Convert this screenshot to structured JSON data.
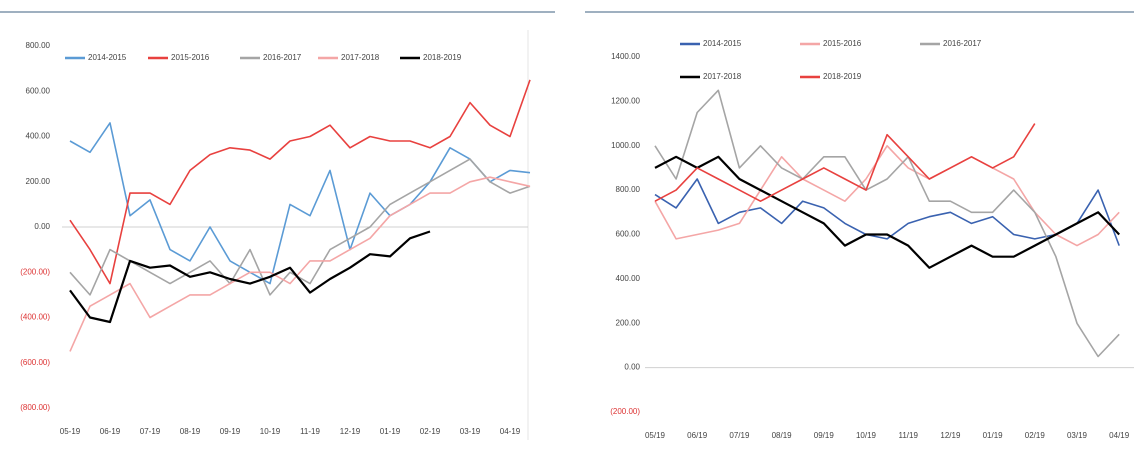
{
  "chart_data": [
    {
      "type": "line",
      "categories": [
        "05-19",
        null,
        "06-19",
        null,
        "07-19",
        null,
        "08-19",
        null,
        "09-19",
        null,
        "10-19",
        null,
        "11-19",
        null,
        "12-19",
        null,
        "01-19",
        null,
        "02-19",
        null,
        "03-19",
        null,
        "04-19",
        null
      ],
      "ylim": [
        -800,
        800
      ],
      "yticks": [
        {
          "value": -800,
          "label": "(800.00)"
        },
        {
          "value": -600,
          "label": "(600.00)"
        },
        {
          "value": -400,
          "label": "(400.00)"
        },
        {
          "value": -200,
          "label": "(200.00)"
        },
        {
          "value": 0,
          "label": "0.00"
        },
        {
          "value": 200,
          "label": "200.00"
        },
        {
          "value": 400,
          "label": "400.00"
        },
        {
          "value": 600,
          "label": "600.00"
        },
        {
          "value": 800,
          "label": "800.00"
        }
      ],
      "series": [
        {
          "name": "2014-2015",
          "color": "#5b9bd5",
          "values": [
            380,
            330,
            460,
            50,
            120,
            -100,
            -150,
            0,
            -150,
            -200,
            -250,
            100,
            50,
            250,
            -100,
            150,
            50,
            100,
            200,
            350,
            300,
            200,
            250,
            240
          ]
        },
        {
          "name": "2015-2016",
          "color": "#e8413f",
          "values": [
            30,
            -100,
            -250,
            150,
            150,
            100,
            250,
            320,
            350,
            340,
            300,
            380,
            400,
            450,
            350,
            400,
            380,
            380,
            350,
            400,
            550,
            450,
            400,
            650
          ]
        },
        {
          "name": "2016-2017",
          "color": "#a5a5a5",
          "values": [
            -200,
            -300,
            -100,
            -150,
            -200,
            -250,
            -200,
            -150,
            -250,
            -100,
            -300,
            -200,
            -250,
            -100,
            -50,
            0,
            100,
            150,
            200,
            250,
            300,
            200,
            150,
            180
          ]
        },
        {
          "name": "2017-2018",
          "color": "#f4a6a6",
          "values": [
            -550,
            -350,
            -300,
            -250,
            -400,
            -350,
            -300,
            -300,
            -250,
            -200,
            -200,
            -250,
            -150,
            -150,
            -100,
            -50,
            50,
            100,
            150,
            150,
            200,
            220,
            200,
            180
          ]
        },
        {
          "name": "2018-2019",
          "color": "#000000",
          "values": [
            -280,
            -400,
            -420,
            -150,
            -180,
            -170,
            -220,
            -200,
            -230,
            -250,
            -220,
            -180,
            -290,
            -230,
            -180,
            -120,
            -130,
            -50,
            -20,
            null,
            null,
            null,
            null,
            null
          ]
        }
      ]
    },
    {
      "type": "line",
      "categories": [
        "05/19",
        null,
        "06/19",
        null,
        "07/19",
        null,
        "08/19",
        null,
        "09/19",
        null,
        "10/19",
        null,
        "11/19",
        null,
        "12/19",
        null,
        "01/19",
        null,
        "02/19",
        null,
        "03/19",
        null,
        "04/19"
      ],
      "ylim": [
        -200,
        1400
      ],
      "yticks": [
        {
          "value": -200,
          "label": "(200.00)"
        },
        {
          "value": 0,
          "label": "0.00"
        },
        {
          "value": 200,
          "label": "200.00"
        },
        {
          "value": 400,
          "label": "400.00"
        },
        {
          "value": 600,
          "label": "600.00"
        },
        {
          "value": 800,
          "label": "800.00"
        },
        {
          "value": 1000,
          "label": "1000.00"
        },
        {
          "value": 1200,
          "label": "1200.00"
        },
        {
          "value": 1400,
          "label": "1400.00"
        }
      ],
      "series": [
        {
          "name": "2014-2015",
          "color": "#3a62b0",
          "values": [
            780,
            720,
            850,
            650,
            700,
            720,
            650,
            750,
            720,
            650,
            600,
            580,
            650,
            680,
            700,
            650,
            680,
            600,
            580,
            600,
            650,
            800,
            550
          ]
        },
        {
          "name": "2015-2016",
          "color": "#f4a6a6",
          "values": [
            750,
            580,
            600,
            620,
            650,
            800,
            950,
            850,
            800,
            750,
            850,
            1000,
            900,
            850,
            900,
            950,
            900,
            850,
            700,
            600,
            550,
            600,
            700
          ]
        },
        {
          "name": "2016-2017",
          "color": "#a5a5a5",
          "values": [
            1000,
            850,
            1150,
            1250,
            900,
            1000,
            900,
            850,
            950,
            950,
            800,
            850,
            950,
            750,
            750,
            700,
            700,
            800,
            700,
            500,
            200,
            50,
            150
          ]
        },
        {
          "name": "2017-2018",
          "color": "#000000",
          "values": [
            900,
            950,
            900,
            950,
            850,
            800,
            750,
            700,
            650,
            550,
            600,
            600,
            550,
            450,
            500,
            550,
            500,
            500,
            550,
            600,
            650,
            700,
            600
          ]
        },
        {
          "name": "2018-2019",
          "color": "#e8413f",
          "values": [
            750,
            800,
            900,
            850,
            800,
            750,
            800,
            850,
            900,
            850,
            800,
            1050,
            950,
            850,
            900,
            950,
            900,
            950,
            1100,
            null,
            null,
            null,
            null
          ]
        }
      ]
    }
  ]
}
